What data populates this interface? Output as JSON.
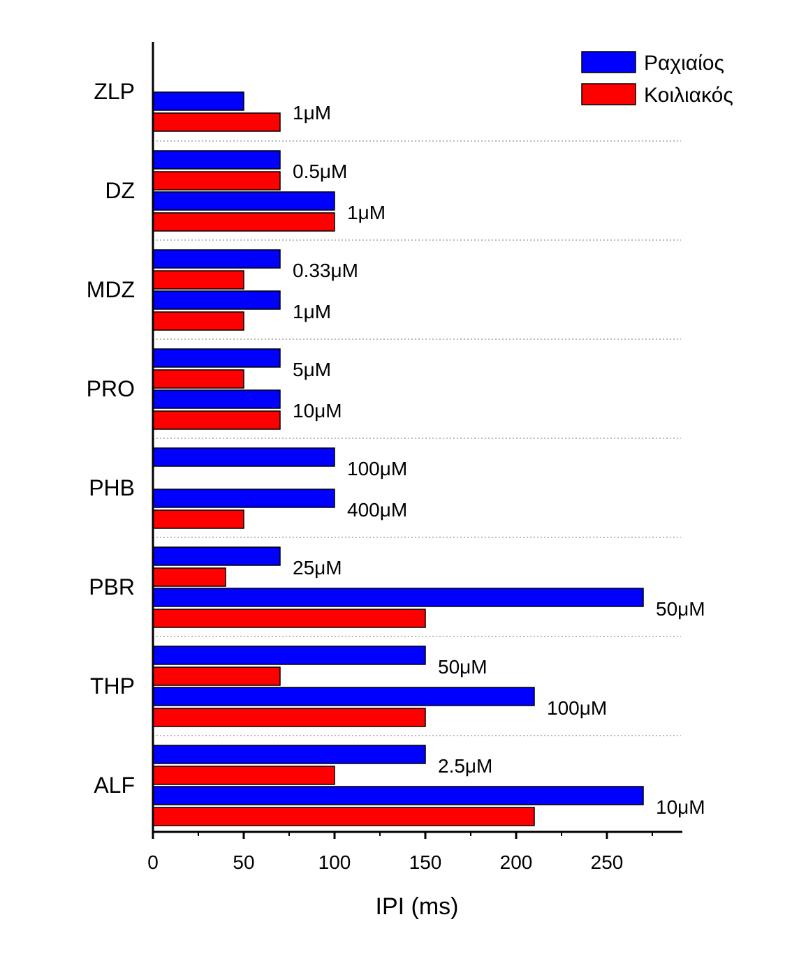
{
  "chart_data": {
    "type": "bar",
    "orientation": "horizontal",
    "xlabel": "IPI (ms)",
    "ylabel": "",
    "xlim": [
      0,
      290
    ],
    "x_ticks": [
      0,
      50,
      100,
      150,
      200,
      250
    ],
    "grid": "dotted separators between groups",
    "legend_position": "top-right",
    "series": [
      {
        "name": "Ραχιαίος",
        "color": "#0000ff"
      },
      {
        "name": "Κοιλιακός",
        "color": "#ff0000"
      }
    ],
    "groups": [
      {
        "label": "ZLP",
        "conditions": [
          {
            "label": "1μM",
            "values": [
              50,
              70
            ]
          }
        ]
      },
      {
        "label": "DZ",
        "conditions": [
          {
            "label": "0.5μM",
            "values": [
              70,
              70
            ]
          },
          {
            "label": "1μM",
            "values": [
              100,
              100
            ]
          }
        ]
      },
      {
        "label": "MDZ",
        "conditions": [
          {
            "label": "0.33μM",
            "values": [
              70,
              50
            ]
          },
          {
            "label": "1μM",
            "values": [
              70,
              50
            ]
          }
        ]
      },
      {
        "label": "PRO",
        "conditions": [
          {
            "label": "5μM",
            "values": [
              70,
              50
            ]
          },
          {
            "label": "10μM",
            "values": [
              70,
              70
            ]
          }
        ]
      },
      {
        "label": "PHB",
        "conditions": [
          {
            "label": "100μM",
            "values": [
              100,
              null
            ]
          },
          {
            "label": "400μM",
            "values": [
              100,
              50
            ]
          }
        ]
      },
      {
        "label": "PBR",
        "conditions": [
          {
            "label": "25μM",
            "values": [
              70,
              40
            ]
          },
          {
            "label": "50μM",
            "values": [
              270,
              150
            ]
          }
        ]
      },
      {
        "label": "THP",
        "conditions": [
          {
            "label": "50μM",
            "values": [
              150,
              70
            ]
          },
          {
            "label": "100μM",
            "values": [
              210,
              150
            ]
          }
        ]
      },
      {
        "label": "ALF",
        "conditions": [
          {
            "label": "2.5μM",
            "values": [
              150,
              100
            ]
          },
          {
            "label": "10μM",
            "values": [
              270,
              210
            ]
          }
        ]
      }
    ]
  }
}
